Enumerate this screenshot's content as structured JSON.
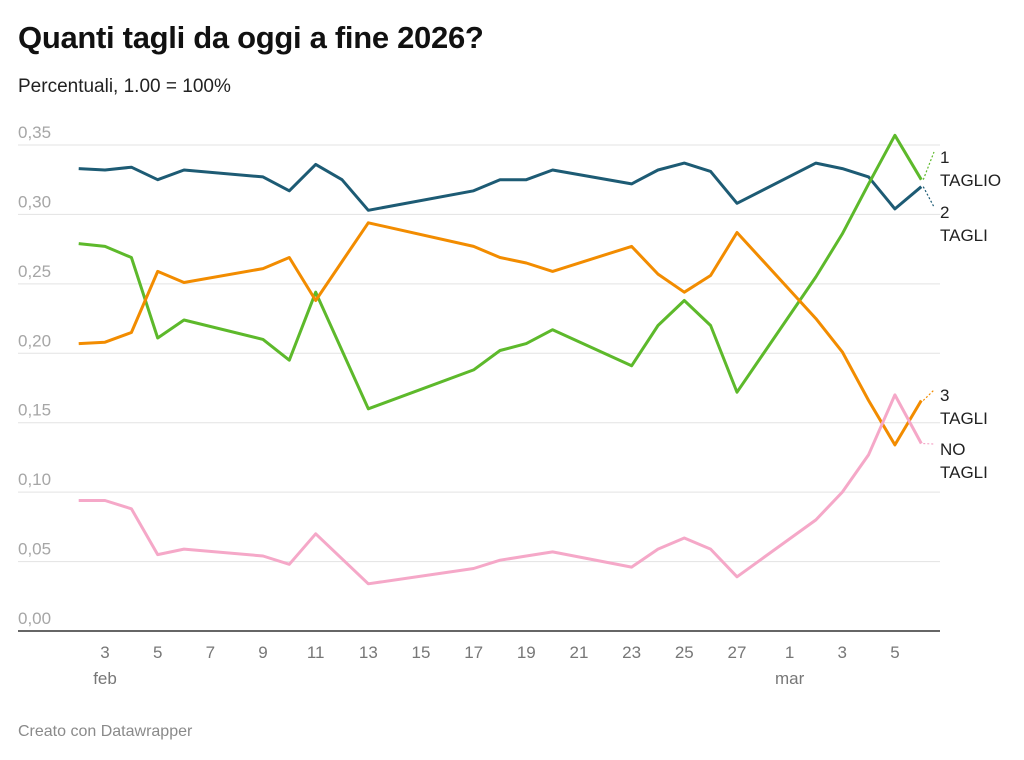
{
  "header": {
    "title": "Quanti tagli da oggi a fine 2026?",
    "subtitle": "Percentuali, 1.00 = 100%"
  },
  "footer": {
    "credit": "Creato con Datawrapper"
  },
  "chart_data": {
    "type": "line",
    "title": "Quanti tagli da oggi a fine 2026?",
    "subtitle": "Percentuali, 1.00 = 100%",
    "xlabel": "",
    "ylabel": "",
    "ylim": [
      0,
      0.35
    ],
    "grid": true,
    "legend": "direct labels at right end of lines",
    "y_ticks": [
      "0,00",
      "0,05",
      "0,10",
      "0,15",
      "0,20",
      "0,25",
      "0,30",
      "0,35"
    ],
    "x_ticks": [
      {
        "date": "2026-02-03",
        "label": "3"
      },
      {
        "date": "2026-02-05",
        "label": "5"
      },
      {
        "date": "2026-02-07",
        "label": "7"
      },
      {
        "date": "2026-02-09",
        "label": "9"
      },
      {
        "date": "2026-02-11",
        "label": "11"
      },
      {
        "date": "2026-02-13",
        "label": "13"
      },
      {
        "date": "2026-02-15",
        "label": "15"
      },
      {
        "date": "2026-02-17",
        "label": "17"
      },
      {
        "date": "2026-02-19",
        "label": "19"
      },
      {
        "date": "2026-02-21",
        "label": "21"
      },
      {
        "date": "2026-02-23",
        "label": "23"
      },
      {
        "date": "2026-02-25",
        "label": "25"
      },
      {
        "date": "2026-02-27",
        "label": "27"
      },
      {
        "date": "2026-03-01",
        "label": "1"
      },
      {
        "date": "2026-03-03",
        "label": "3"
      },
      {
        "date": "2026-03-05",
        "label": "5"
      }
    ],
    "month_labels": [
      {
        "date": "2026-02-03",
        "label": "feb"
      },
      {
        "date": "2026-03-01",
        "label": "mar"
      }
    ],
    "x": [
      "2026-02-02",
      "2026-02-03",
      "2026-02-04",
      "2026-02-05",
      "2026-02-06",
      "2026-02-09",
      "2026-02-10",
      "2026-02-11",
      "2026-02-12",
      "2026-02-13",
      "2026-02-17",
      "2026-02-18",
      "2026-02-19",
      "2026-02-20",
      "2026-02-23",
      "2026-02-24",
      "2026-02-25",
      "2026-02-26",
      "2026-02-27",
      "2026-03-02",
      "2026-03-03",
      "2026-03-04",
      "2026-03-05",
      "2026-03-06"
    ],
    "series": [
      {
        "name": "2 TAGLI",
        "label_lines": [
          "2",
          "TAGLI"
        ],
        "color": "#1d5b74",
        "values": [
          0.333,
          0.332,
          0.334,
          0.325,
          0.332,
          0.327,
          0.317,
          0.336,
          0.325,
          0.303,
          0.317,
          0.325,
          0.325,
          0.332,
          0.322,
          0.332,
          0.337,
          0.331,
          0.308,
          0.337,
          0.333,
          0.327,
          0.304,
          0.32
        ]
      },
      {
        "name": "1 TAGLIO",
        "label_lines": [
          "1",
          "TAGLIO"
        ],
        "color": "#5db92b",
        "values": [
          0.279,
          0.277,
          0.269,
          0.211,
          0.224,
          0.21,
          0.195,
          0.244,
          0.202,
          0.16,
          0.188,
          0.202,
          0.207,
          0.217,
          0.191,
          0.22,
          0.238,
          0.22,
          0.172,
          0.255,
          0.286,
          0.322,
          0.357,
          0.325
        ]
      },
      {
        "name": "3 TAGLI",
        "label_lines": [
          "3",
          "TAGLI"
        ],
        "color": "#f28c00",
        "values": [
          0.207,
          0.208,
          0.215,
          0.259,
          0.251,
          0.261,
          0.269,
          0.238,
          0.266,
          0.294,
          0.277,
          0.269,
          0.265,
          0.259,
          0.277,
          0.257,
          0.244,
          0.256,
          0.287,
          0.225,
          0.201,
          0.166,
          0.134,
          0.166
        ]
      },
      {
        "name": "NO TAGLI",
        "label_lines": [
          "NO",
          "TAGLI"
        ],
        "color": "#f5a8c8",
        "values": [
          0.094,
          0.094,
          0.088,
          0.055,
          0.059,
          0.054,
          0.048,
          0.07,
          0.052,
          0.034,
          0.045,
          0.051,
          0.054,
          0.057,
          0.046,
          0.059,
          0.067,
          0.059,
          0.039,
          0.08,
          0.1,
          0.127,
          0.17,
          0.135
        ]
      }
    ]
  }
}
